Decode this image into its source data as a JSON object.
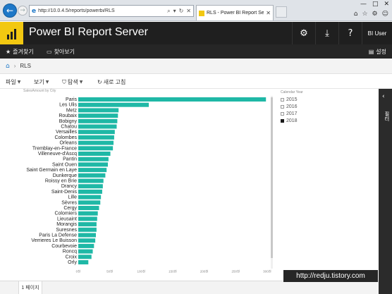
{
  "browser": {
    "url": "http://10.0.4.5/reports/powerbi/RLS",
    "tab_title": "RLS - Power BI Report Serv...",
    "window_controls": [
      "—",
      "□",
      "✕"
    ],
    "chrome_icons": [
      "home-icon",
      "star-icon",
      "gear-icon",
      "smiley-icon"
    ]
  },
  "header": {
    "title": "Power BI Report Server",
    "user": "BI User"
  },
  "favorites_bar": {
    "favorites": "즐겨찾기",
    "browse": "찾아보기",
    "settings": "설정"
  },
  "breadcrumb": {
    "home_icon": "home-icon",
    "current": "RLS"
  },
  "toolbar": {
    "file": "파일",
    "view": "보기",
    "explore": "탐색",
    "refresh": "새로 고침"
  },
  "legend": {
    "title": "Calendar Year",
    "items": [
      {
        "label": "2015",
        "selected": false
      },
      {
        "label": "2016",
        "selected": false
      },
      {
        "label": "2017",
        "selected": false
      },
      {
        "label": "2018",
        "selected": true
      }
    ]
  },
  "side_pane": {
    "label": "필터"
  },
  "pages": {
    "current": "1 페이지"
  },
  "watermark": "http://redju.tistory.com",
  "colors": {
    "bar": "#1fb8a6",
    "header_bg": "#1f1f1f",
    "logo": "#f2c811",
    "accent": "#1e78c8"
  },
  "chart_data": {
    "type": "bar",
    "orientation": "horizontal",
    "title": "SalesAmount by City",
    "xlabel": "",
    "ylabel": "",
    "xlim": [
      0,
      300
    ],
    "x_ticks": [
      "0천",
      "50천",
      "100천",
      "150천",
      "200천",
      "250천",
      "300천"
    ],
    "categories": [
      "Paris",
      "Les Ulis",
      "Metz",
      "Roubaix",
      "Bobigny",
      "Chatou",
      "Versailles",
      "Colombes",
      "Orleans",
      "Tremblay-en-France",
      "Villeneuve-d'Ascq",
      "Pantin",
      "Saint Ouen",
      "Saint Germain en Laye",
      "Dunkerque",
      "Roissy en Brie",
      "Drancy",
      "Saint-Denis",
      "Lille",
      "Sèvres",
      "Cergy",
      "Colomiers",
      "Lieusaint",
      "Morangis",
      "Suresnes",
      "Paris La Defense",
      "Verrieres Le Buisson",
      "Courbevoie",
      "Roncq",
      "Croix",
      "Orly"
    ],
    "values": [
      298,
      112,
      64,
      63,
      62,
      61,
      58,
      57,
      56,
      55,
      51,
      48,
      47,
      45,
      43,
      40,
      39,
      38,
      36,
      35,
      33,
      31,
      30,
      29,
      29,
      28,
      27,
      25,
      23,
      21,
      16
    ]
  }
}
